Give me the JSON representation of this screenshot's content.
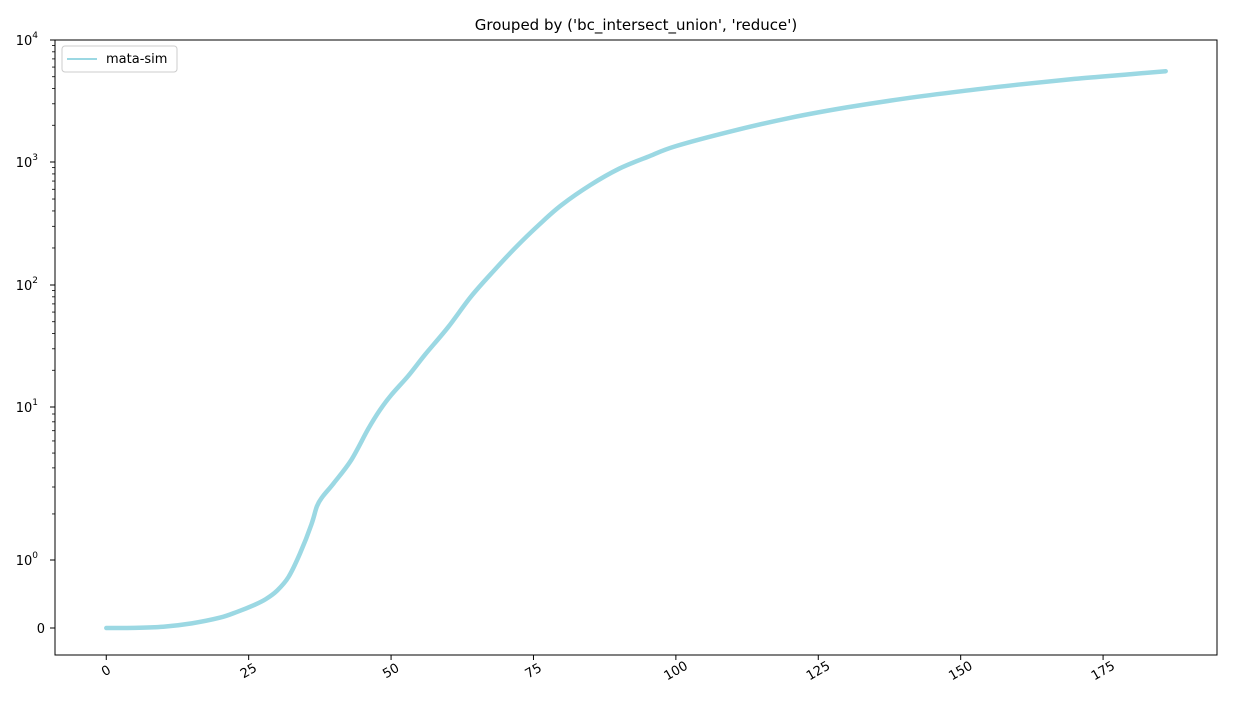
{
  "chart_data": {
    "type": "line",
    "title": "Grouped by ('bc_intersect_union', 'reduce')",
    "xlabel": "",
    "ylabel": "",
    "y_scale": "symlog",
    "xlim": [
      -9,
      195
    ],
    "x_ticks": [
      "0",
      "25",
      "50",
      "75",
      "100",
      "125",
      "150",
      "175"
    ],
    "x_tick_values": [
      0,
      25,
      50,
      75,
      100,
      125,
      150,
      175
    ],
    "x_tick_rotation": 30,
    "y_ticks": [
      {
        "value": 0,
        "base": "0",
        "exp": ""
      },
      {
        "value": 1,
        "base": "10",
        "exp": "0"
      },
      {
        "value": 10,
        "base": "10",
        "exp": "1"
      },
      {
        "value": 100,
        "base": "10",
        "exp": "2"
      },
      {
        "value": 1000,
        "base": "10",
        "exp": "3"
      },
      {
        "value": 10000,
        "base": "10",
        "exp": "4"
      }
    ],
    "grid": false,
    "legend_position": "top-left",
    "series": [
      {
        "name": "mata-sim",
        "color": "#9bd8e3",
        "points": [
          [
            0,
            0
          ],
          [
            5,
            0.002
          ],
          [
            10,
            0.018
          ],
          [
            15,
            0.068
          ],
          [
            20,
            0.153
          ],
          [
            23,
            0.238
          ],
          [
            26,
            0.34
          ],
          [
            28,
            0.425
          ],
          [
            30,
            0.55
          ],
          [
            32,
            0.75
          ],
          [
            34,
            1.1
          ],
          [
            36,
            1.7
          ],
          [
            37,
            2.25
          ],
          [
            38,
            2.6
          ],
          [
            40,
            3.2
          ],
          [
            43,
            4.5
          ],
          [
            46,
            7.2
          ],
          [
            48,
            9.5
          ],
          [
            50,
            12.5
          ],
          [
            53,
            18
          ],
          [
            56,
            27
          ],
          [
            60,
            45
          ],
          [
            64,
            80
          ],
          [
            68,
            130
          ],
          [
            72,
            205
          ],
          [
            76,
            310
          ],
          [
            80,
            450
          ],
          [
            85,
            650
          ],
          [
            90,
            880
          ],
          [
            95,
            1100
          ],
          [
            100,
            1350
          ],
          [
            110,
            1800
          ],
          [
            120,
            2300
          ],
          [
            130,
            2800
          ],
          [
            140,
            3300
          ],
          [
            150,
            3800
          ],
          [
            160,
            4300
          ],
          [
            170,
            4800
          ],
          [
            180,
            5250
          ],
          [
            186,
            5550
          ]
        ]
      }
    ]
  }
}
